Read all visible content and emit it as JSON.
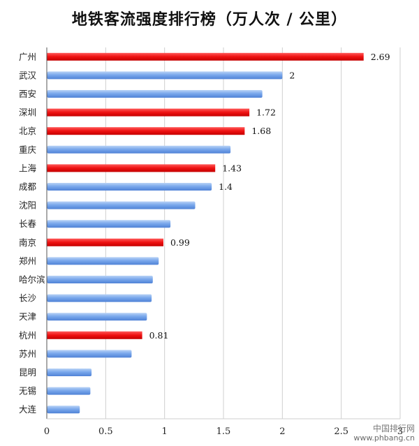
{
  "chart_data": {
    "type": "bar",
    "orientation": "horizontal",
    "title": "地铁客流强度排行榜（万人次 / 公里）",
    "xlabel": "",
    "ylabel": "",
    "xlim": [
      0,
      3
    ],
    "x_ticks": [
      "0",
      "0.5",
      "1",
      "1.5",
      "2",
      "2.5",
      "3"
    ],
    "grid": true,
    "categories": [
      "广州",
      "武汉",
      "西安",
      "深圳",
      "北京",
      "重庆",
      "上海",
      "成都",
      "沈阳",
      "长春",
      "南京",
      "郑州",
      "哈尔滨",
      "长沙",
      "天津",
      "杭州",
      "苏州",
      "昆明",
      "无锡",
      "大连"
    ],
    "values": [
      2.69,
      2.0,
      1.83,
      1.72,
      1.68,
      1.56,
      1.43,
      1.4,
      1.26,
      1.05,
      0.99,
      0.95,
      0.9,
      0.89,
      0.85,
      0.81,
      0.72,
      0.38,
      0.37,
      0.28
    ],
    "data_labels": [
      "2.69",
      "2",
      "",
      "1.72",
      "1.68",
      "",
      "1.43",
      "1.4",
      "",
      "",
      "0.99",
      "",
      "",
      "",
      "",
      "0.81",
      "",
      "",
      "",
      ""
    ],
    "highlight": [
      true,
      false,
      false,
      true,
      true,
      false,
      true,
      false,
      false,
      false,
      true,
      false,
      false,
      false,
      false,
      true,
      false,
      false,
      false,
      false
    ],
    "colors": {
      "highlight": "#ee1111",
      "normal": "#6d9eeb",
      "normal_light": "#aecbf5"
    }
  },
  "watermark": {
    "line1": "中国排行网",
    "line2": "www.phbang.cn"
  }
}
